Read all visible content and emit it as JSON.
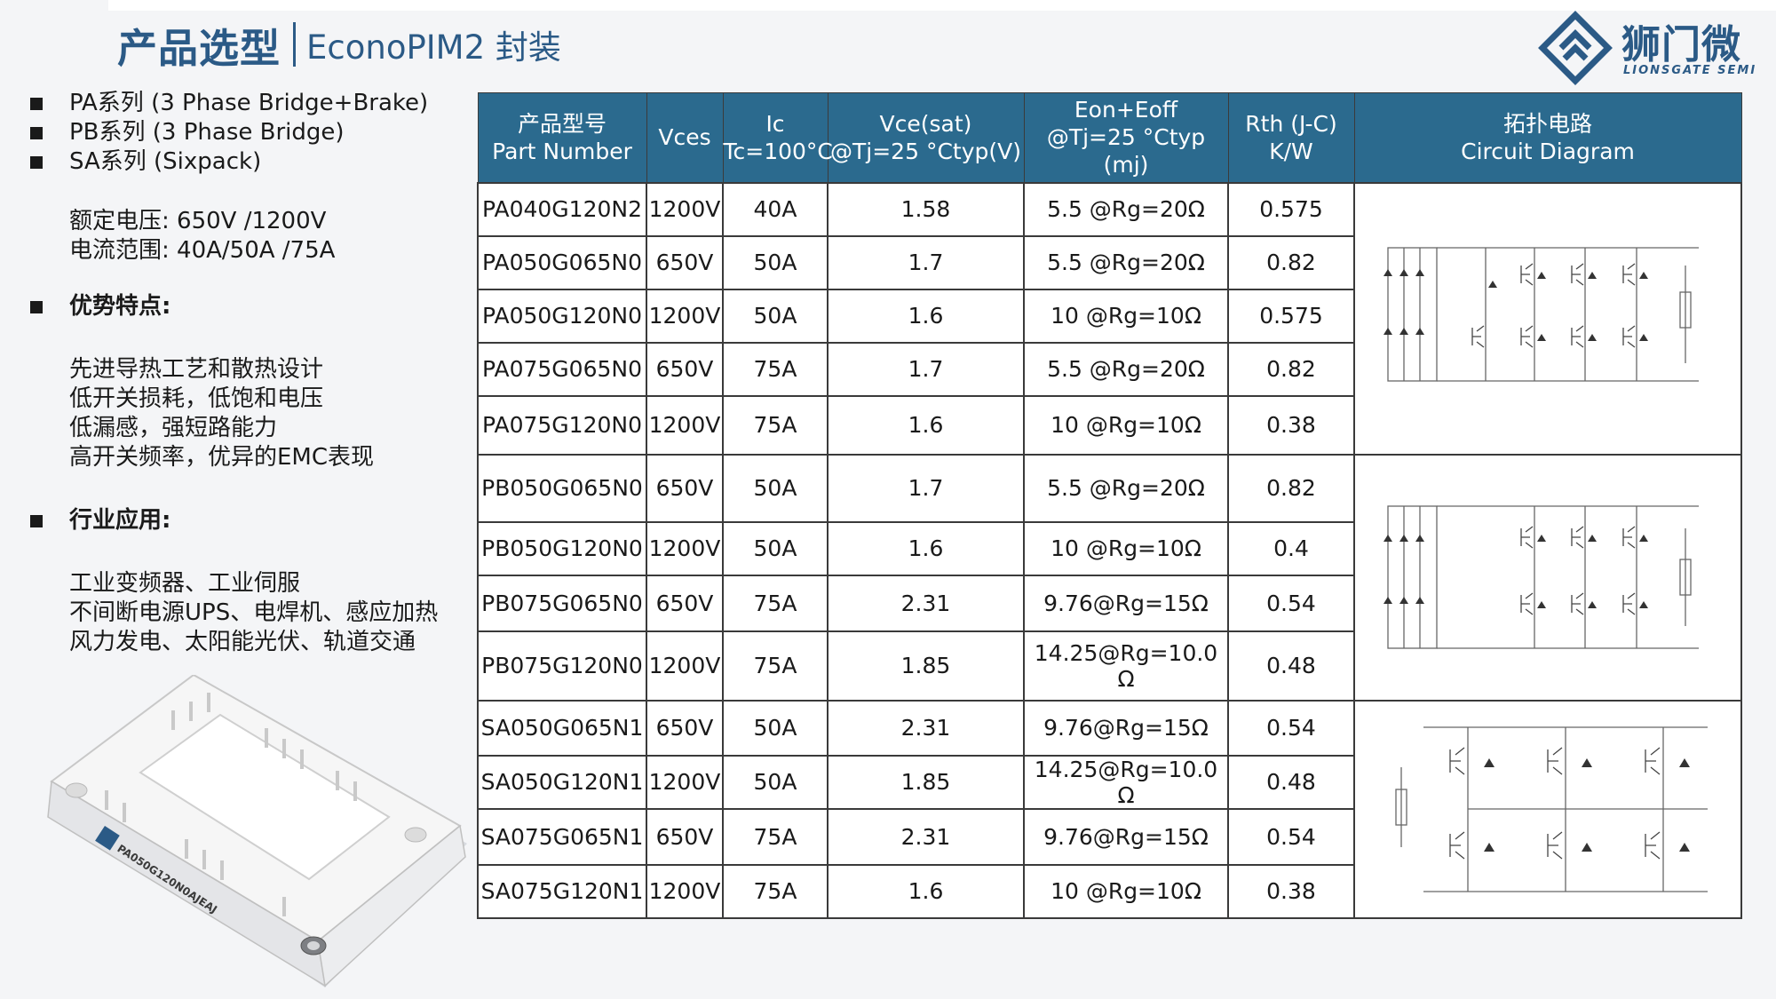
{
  "header": {
    "title": "产品选型",
    "subtitle": "EconoPIM2 封装"
  },
  "logo": {
    "name_cn": "狮门微",
    "name_en": "LIONSGATE SEMI",
    "icon": "lionsgate-logo-icon",
    "color": "#2b5a86"
  },
  "left_panel": {
    "series": [
      "PA系列 (3 Phase Bridge+Brake)",
      "PB系列 (3 Phase Bridge)",
      "SA系列 (Sixpack)"
    ],
    "specs": [
      "额定电压: 650V /1200V",
      "电流范围:  40A/50A /75A"
    ],
    "advantages_title": "优势特点:",
    "advantages": [
      "先进导热工艺和散热设计",
      "低开关损耗，低饱和电压",
      "低漏感，强短路能力",
      "高开关频率，优异的EMC表现"
    ],
    "applications_title": "行业应用:",
    "applications": [
      "工业变频器、工业伺服",
      "不间断电源UPS、电焊机、感应加热",
      "风力发电、太阳能光伏、轨道交通"
    ]
  },
  "module_image": {
    "marking": "PA050G120N0AJEAJ"
  },
  "table": {
    "header_color": "#2b6a8e",
    "headers": {
      "part_cn": "产品型号",
      "part_en": "Part Number",
      "vces": "Vces",
      "ic_1": "Ic",
      "ic_2": "Tc=100°C",
      "vce_1": "Vce(sat)",
      "vce_2": "@Tj=25 °Ctyp(V)",
      "eon_1": "Eon+Eoff",
      "eon_2": "@Tj=25 °Ctyp (mj)",
      "rth_1": "Rth (J-C)",
      "rth_2": "K/W",
      "circuit_cn": "拓扑电路",
      "circuit_en": "Circuit Diagram"
    },
    "rows": [
      {
        "pn": "PA040G120N2",
        "vces": "1200V",
        "ic": "40A",
        "vce": "1.58",
        "eon": "5.5 @Rg=20Ω",
        "rth": "0.575"
      },
      {
        "pn": "PA050G065N0",
        "vces": "650V",
        "ic": "50A",
        "vce": "1.7",
        "eon": "5.5 @Rg=20Ω",
        "rth": "0.82"
      },
      {
        "pn": "PA050G120N0",
        "vces": "1200V",
        "ic": "50A",
        "vce": "1.6",
        "eon": "10 @Rg=10Ω",
        "rth": "0.575"
      },
      {
        "pn": "PA075G065N0",
        "vces": "650V",
        "ic": "75A",
        "vce": "1.7",
        "eon": "5.5 @Rg=20Ω",
        "rth": "0.82"
      },
      {
        "pn": "PA075G120N0",
        "vces": "1200V",
        "ic": "75A",
        "vce": "1.6",
        "eon": "10 @Rg=10Ω",
        "rth": "0.38"
      },
      {
        "pn": "PB050G065N0",
        "vces": "650V",
        "ic": "50A",
        "vce": "1.7",
        "eon": "5.5 @Rg=20Ω",
        "rth": "0.82"
      },
      {
        "pn": "PB050G120N0",
        "vces": "1200V",
        "ic": "50A",
        "vce": "1.6",
        "eon": "10 @Rg=10Ω",
        "rth": "0.4"
      },
      {
        "pn": "PB075G065N0",
        "vces": "650V",
        "ic": "75A",
        "vce": "2.31",
        "eon": "9.76@Rg=15Ω",
        "rth": "0.54"
      },
      {
        "pn": "PB075G120N0",
        "vces": "1200V",
        "ic": "75A",
        "vce": "1.85",
        "eon": "14.25@Rg=10.0 Ω",
        "rth": "0.48"
      },
      {
        "pn": "SA050G065N1",
        "vces": "650V",
        "ic": "50A",
        "vce": "2.31",
        "eon": "9.76@Rg=15Ω",
        "rth": "0.54"
      },
      {
        "pn": "SA050G120N1",
        "vces": "1200V",
        "ic": "50A",
        "vce": "1.85",
        "eon": "14.25@Rg=10.0 Ω",
        "rth": "0.48"
      },
      {
        "pn": "SA075G065N1",
        "vces": "650V",
        "ic": "75A",
        "vce": "2.31",
        "eon": "9.76@Rg=15Ω",
        "rth": "0.54"
      },
      {
        "pn": "SA075G120N1",
        "vces": "1200V",
        "ic": "75A",
        "vce": "1.6",
        "eon": "10 @Rg=10Ω",
        "rth": "0.38"
      }
    ],
    "highlight_color": "#e02020"
  }
}
